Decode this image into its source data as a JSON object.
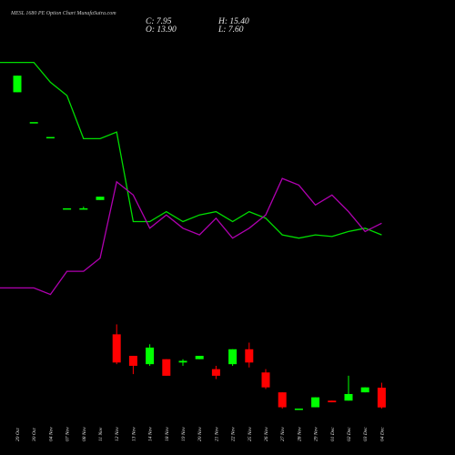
{
  "header": {
    "title": "MESL 1680 PE Option  Chart MunafaSutra.com",
    "close": "C: 7.95",
    "open": "O: 13.90",
    "high": "H: 15.40",
    "low": "L: 7.60"
  },
  "colors": {
    "background": "#000000",
    "up_candle": "#00ff00",
    "down_candle": "#ff0000",
    "line_green": "#00dd00",
    "line_purple": "#b000b0",
    "text": "#e6e6e6"
  },
  "chart_data": {
    "type": "candlestick",
    "price_range": [
      7.6,
      116
    ],
    "categories": [
      "29 Oct",
      "30 Oct",
      "04 Nov",
      "07 Nov",
      "08 Nov",
      "11 Nov",
      "12 Nov",
      "13 Nov",
      "14 Nov",
      "18 Nov",
      "19 Nov",
      "20 Nov",
      "21 Nov",
      "22 Nov",
      "25 Nov",
      "26 Nov",
      "27 Nov",
      "28 Nov",
      "29 Nov",
      "01 Dec",
      "02 Dec",
      "03 Dec",
      "04 Dec"
    ],
    "candles": [
      {
        "o": 103.0,
        "h": 108.0,
        "l": 103.0,
        "c": 108.0
      },
      {
        "o": 94.0,
        "h": 94.0,
        "l": 94.0,
        "c": 94.0
      },
      {
        "o": 89.5,
        "h": 89.5,
        "l": 89.5,
        "c": 89.5
      },
      {
        "o": 68.0,
        "h": 68.0,
        "l": 68.0,
        "c": 68.0
      },
      {
        "o": 68.0,
        "h": 68.5,
        "l": 68.0,
        "c": 68.0
      },
      {
        "o": 70.5,
        "h": 71.5,
        "l": 70.5,
        "c": 71.5
      },
      {
        "o": 30.0,
        "h": 33.0,
        "l": 21.0,
        "c": 21.5
      },
      {
        "o": 23.5,
        "h": 23.5,
        "l": 18.0,
        "c": 20.5
      },
      {
        "o": 21.0,
        "h": 27.0,
        "l": 20.5,
        "c": 26.0
      },
      {
        "o": 22.5,
        "h": 22.5,
        "l": 17.5,
        "c": 17.5
      },
      {
        "o": 21.5,
        "h": 22.5,
        "l": 20.5,
        "c": 22.0
      },
      {
        "o": 22.5,
        "h": 23.5,
        "l": 22.5,
        "c": 23.5
      },
      {
        "o": 19.5,
        "h": 20.5,
        "l": 16.5,
        "c": 17.5
      },
      {
        "o": 21.0,
        "h": 25.5,
        "l": 20.5,
        "c": 25.5
      },
      {
        "o": 25.5,
        "h": 27.5,
        "l": 20.0,
        "c": 21.5
      },
      {
        "o": 18.5,
        "h": 19.5,
        "l": 13.5,
        "c": 14.0
      },
      {
        "o": 12.5,
        "h": 12.5,
        "l": 7.6,
        "c": 8.0
      },
      {
        "o": 7.6,
        "h": 7.6,
        "l": 7.6,
        "c": 7.6
      },
      {
        "o": 8.0,
        "h": 11.0,
        "l": 8.0,
        "c": 11.0
      },
      {
        "o": 10.0,
        "h": 10.0,
        "l": 9.5,
        "c": 9.5
      },
      {
        "o": 10.0,
        "h": 17.5,
        "l": 10.0,
        "c": 12.0
      },
      {
        "o": 12.5,
        "h": 14.0,
        "l": 12.5,
        "c": 14.0
      },
      {
        "o": 13.9,
        "h": 15.4,
        "l": 7.6,
        "c": 7.95
      }
    ],
    "series": [
      {
        "color": "#00dd00",
        "values": [
          112,
          112,
          106,
          102,
          89,
          89,
          91,
          64,
          64,
          67,
          64,
          66,
          67,
          64,
          67,
          65,
          60,
          59,
          60,
          59.5,
          61,
          62,
          60
        ]
      },
      {
        "color": "#b000b0",
        "values": [
          44,
          44,
          42,
          49,
          49,
          53,
          76,
          72,
          62,
          66,
          62,
          60,
          65,
          59,
          62,
          66,
          77,
          75,
          69,
          72,
          67,
          61,
          63.5
        ]
      }
    ]
  }
}
